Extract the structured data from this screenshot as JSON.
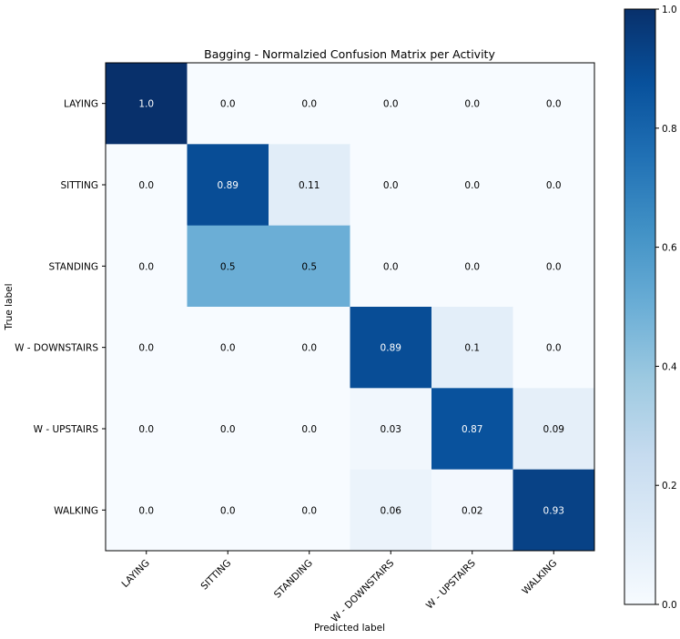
{
  "chart_data": {
    "type": "heatmap",
    "title": "Bagging - Normalzied Confusion Matrix per Activity",
    "xlabel": "Predicted label",
    "ylabel": "True label",
    "x_categories": [
      "LAYING",
      "SITTING",
      "STANDING",
      "W - DOWNSTAIRS",
      "W - UPSTAIRS",
      "WALKING"
    ],
    "y_categories": [
      "LAYING",
      "SITTING",
      "STANDING",
      "W - DOWNSTAIRS",
      "W - UPSTAIRS",
      "WALKING"
    ],
    "values": [
      [
        1.0,
        0.0,
        0.0,
        0.0,
        0.0,
        0.0
      ],
      [
        0.0,
        0.89,
        0.11,
        0.0,
        0.0,
        0.0
      ],
      [
        0.0,
        0.5,
        0.5,
        0.0,
        0.0,
        0.0
      ],
      [
        0.0,
        0.0,
        0.0,
        0.89,
        0.1,
        0.0
      ],
      [
        0.0,
        0.0,
        0.0,
        0.03,
        0.87,
        0.09
      ],
      [
        0.0,
        0.0,
        0.0,
        0.06,
        0.02,
        0.93
      ]
    ],
    "value_labels": [
      [
        "1.0",
        "0.0",
        "0.0",
        "0.0",
        "0.0",
        "0.0"
      ],
      [
        "0.0",
        "0.89",
        "0.11",
        "0.0",
        "0.0",
        "0.0"
      ],
      [
        "0.0",
        "0.5",
        "0.5",
        "0.0",
        "0.0",
        "0.0"
      ],
      [
        "0.0",
        "0.0",
        "0.0",
        "0.89",
        "0.1",
        "0.0"
      ],
      [
        "0.0",
        "0.0",
        "0.0",
        "0.03",
        "0.87",
        "0.09"
      ],
      [
        "0.0",
        "0.0",
        "0.0",
        "0.06",
        "0.02",
        "0.93"
      ]
    ],
    "colormap": "Blues",
    "colorbar": {
      "range": [
        0.0,
        1.0
      ],
      "ticks": [
        0.0,
        0.2,
        0.4,
        0.6,
        0.8,
        1.0
      ],
      "tick_labels": [
        "0.0",
        "0.2",
        "0.4",
        "0.6",
        "0.8",
        "1.0"
      ]
    },
    "x_tick_rotation": "45",
    "grid": false
  }
}
